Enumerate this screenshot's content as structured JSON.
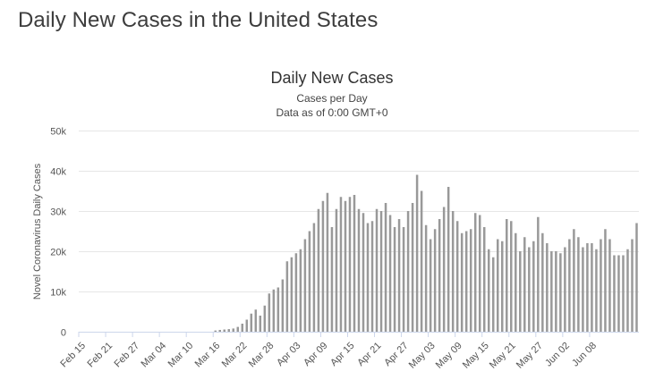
{
  "page": {
    "heading": "Daily New Cases in the United States"
  },
  "chart_data": {
    "type": "bar",
    "title": "Daily New Cases",
    "subtitle": [
      "Cases per Day",
      "Data as of 0:00 GMT+0"
    ],
    "ylabel": "Novel Coronavirus Daily Cases",
    "xlabel": "",
    "ylim": [
      0,
      50000
    ],
    "y_ticks": [
      0,
      10000,
      20000,
      30000,
      40000,
      50000
    ],
    "y_tick_labels": [
      "0",
      "10k",
      "20k",
      "30k",
      "40k",
      "50k"
    ],
    "x_tick_labels": [
      "Feb 15",
      "Feb 21",
      "Feb 27",
      "Mar 04",
      "Mar 10",
      "Mar 16",
      "Mar 22",
      "Mar 28",
      "Apr 03",
      "Apr 09",
      "Apr 15",
      "Apr 21",
      "Apr 27",
      "May 03",
      "May 09",
      "May 15",
      "May 21",
      "May 27",
      "Jun 02",
      "Jun 08"
    ],
    "x_tick_every": 6,
    "grid": true,
    "bar_color": "#999999",
    "series": [
      {
        "values": [
          0,
          0,
          0,
          0,
          0,
          0,
          0,
          0,
          0,
          0,
          0,
          0,
          0,
          0,
          0,
          0,
          0,
          0,
          0,
          0,
          0,
          0,
          0,
          0,
          0,
          0,
          0,
          0,
          0,
          0,
          300,
          450,
          550,
          650,
          800,
          1200,
          2000,
          3000,
          4500,
          5500,
          4000,
          6500,
          9500,
          10500,
          11000,
          13000,
          17500,
          18500,
          19500,
          20500,
          23000,
          25000,
          27000,
          30500,
          32500,
          34500,
          26000,
          30500,
          33500,
          32500,
          33500,
          34000,
          30500,
          29500,
          27000,
          27500,
          30500,
          30000,
          32000,
          29000,
          26000,
          28000,
          26000,
          30000,
          32000,
          39000,
          35000,
          26500,
          23000,
          25500,
          28000,
          31000,
          36000,
          30000,
          27500,
          24500,
          25000,
          25500,
          29500,
          29000,
          26000,
          20500,
          18500,
          23000,
          22500,
          28000,
          27500,
          24500,
          20000,
          23500,
          21000,
          22500,
          28500,
          24500,
          22000,
          20000,
          20000,
          19500,
          21000,
          23000,
          25500,
          23500,
          21000,
          22000,
          22000,
          20500,
          23000,
          25500,
          23000,
          19000,
          19000,
          19000,
          20500,
          23000,
          27000
        ]
      }
    ]
  }
}
